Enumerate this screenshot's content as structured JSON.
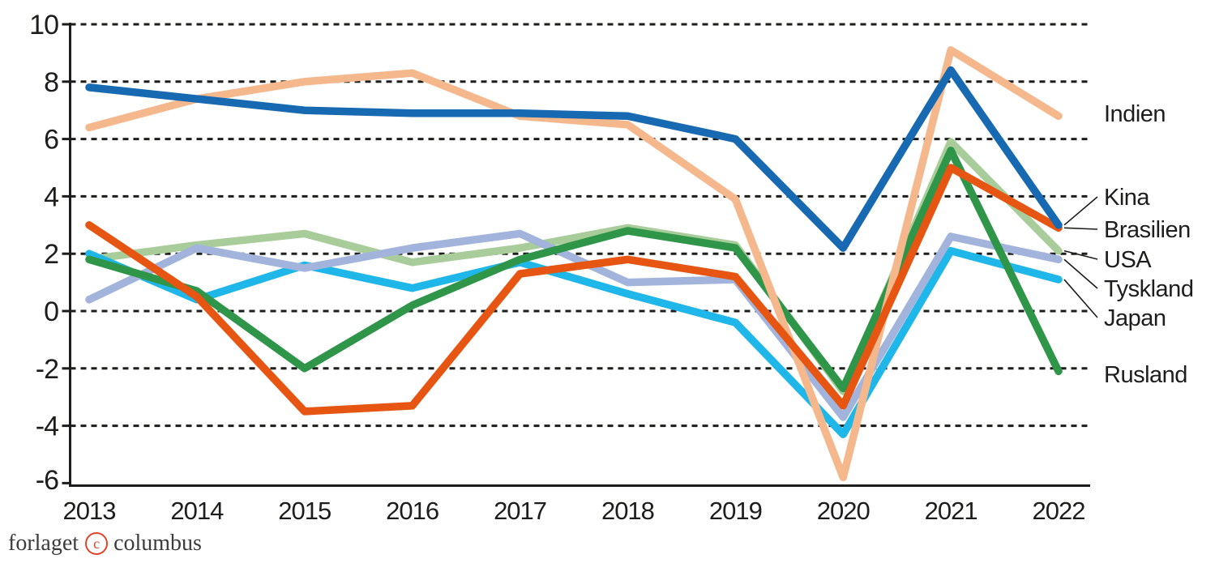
{
  "chart_data": {
    "type": "line",
    "title": "",
    "categories": [
      "2013",
      "2014",
      "2015",
      "2016",
      "2017",
      "2018",
      "2019",
      "2020",
      "2021",
      "2022"
    ],
    "ylim": [
      -6,
      10
    ],
    "yticks": [
      10,
      8,
      6,
      4,
      2,
      0,
      -2,
      -4,
      -6
    ],
    "grid": "horizontal-dashed",
    "legend_position": "right-edge-labels",
    "axis_color": "#1d1d1b",
    "series": [
      {
        "name": "Indien",
        "color": "#f5b88d",
        "values": [
          6.4,
          7.4,
          8.0,
          8.3,
          6.8,
          6.5,
          3.9,
          -5.8,
          9.1,
          6.8
        ]
      },
      {
        "name": "Kina",
        "color": "#1769b1",
        "values": [
          7.8,
          7.4,
          7.0,
          6.9,
          6.9,
          6.8,
          6.0,
          2.2,
          8.4,
          3.0
        ]
      },
      {
        "name": "Brasilien",
        "color": "#e65511",
        "values": [
          3.0,
          0.5,
          -3.5,
          -3.3,
          1.3,
          1.8,
          1.2,
          -3.3,
          5.0,
          2.9
        ]
      },
      {
        "name": "USA",
        "color": "#a9cc9b",
        "values": [
          1.8,
          2.3,
          2.7,
          1.7,
          2.2,
          2.9,
          2.3,
          -2.8,
          5.9,
          2.1
        ]
      },
      {
        "name": "Tyskland",
        "color": "#a2b4dc",
        "values": [
          0.4,
          2.2,
          1.5,
          2.2,
          2.7,
          1.0,
          1.1,
          -3.7,
          2.6,
          1.8
        ]
      },
      {
        "name": "Japan",
        "color": "#1fb6e9",
        "values": [
          2.0,
          0.4,
          1.6,
          0.8,
          1.7,
          0.6,
          -0.4,
          -4.3,
          2.1,
          1.1
        ]
      },
      {
        "name": "Rusland",
        "color": "#2f9649",
        "values": [
          1.8,
          0.7,
          -2.0,
          0.2,
          1.8,
          2.8,
          2.2,
          -2.7,
          5.6,
          -2.1
        ]
      }
    ]
  },
  "footer": {
    "logo_text_left": "forlaget",
    "logo_mark": "c",
    "logo_text_right": "columbus",
    "logo_color": "#e0442b"
  }
}
